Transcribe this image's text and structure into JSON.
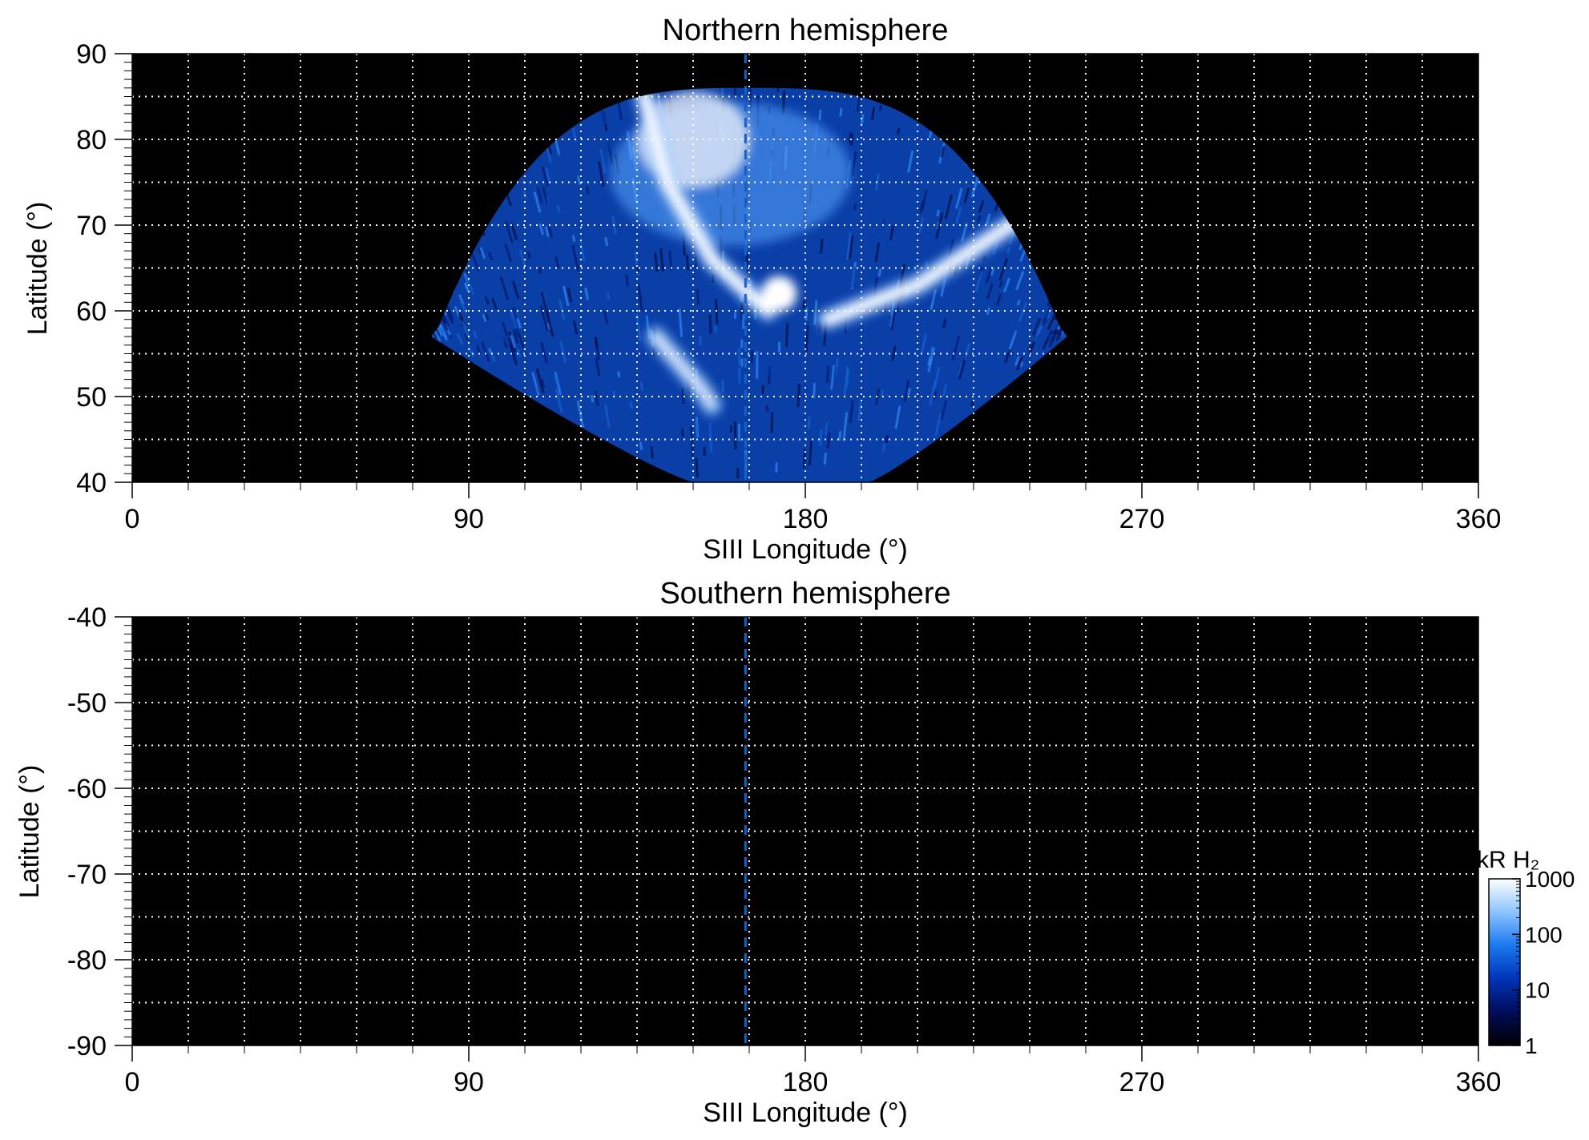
{
  "chart_data": [
    {
      "type": "heatmap",
      "title": "Northern hemisphere",
      "xlabel": "SIII Longitude (°)",
      "ylabel": "Latitude (°)",
      "xlim": [
        0,
        360
      ],
      "ylim": [
        40,
        90
      ],
      "x_ticks": [
        "0",
        "90",
        "180",
        "270",
        "360"
      ],
      "y_ticks": [
        "40",
        "50",
        "60",
        "70",
        "80",
        "90"
      ],
      "grid": true,
      "grid_step_longitude": 15,
      "grid_step_latitude": 5,
      "reference_longitude": 164,
      "reference_line_color": "#1560c8",
      "emission_coverage": {
        "lon_min": 80,
        "lon_max": 250,
        "lat_min": 40,
        "lat_max": 86
      },
      "features": [
        {
          "name": "main oval (left arc)",
          "lon": [
            170,
            155,
            143,
            137
          ],
          "lat": [
            60,
            66,
            75,
            85
          ],
          "level_kR": 1000
        },
        {
          "name": "main oval (right arc)",
          "lon": [
            186,
            210,
            235,
            243
          ],
          "lat": [
            59,
            63,
            70,
            72
          ],
          "level_kR": 1000
        },
        {
          "name": "bright spot",
          "lon": 173,
          "lat": 62,
          "level_kR": 1000
        },
        {
          "name": "footprint arc",
          "lon": [
            140,
            152,
            155
          ],
          "lat": [
            57,
            51,
            49
          ],
          "level_kR": 600
        }
      ]
    },
    {
      "type": "heatmap",
      "title": "Southern hemisphere",
      "xlabel": "SIII Longitude (°)",
      "ylabel": "Latitude (°)",
      "xlim": [
        0,
        360
      ],
      "ylim": [
        -90,
        -40
      ],
      "x_ticks": [
        "0",
        "90",
        "180",
        "270",
        "360"
      ],
      "y_ticks": [
        "-40",
        "-50",
        "-60",
        "-70",
        "-80",
        "-90"
      ],
      "grid": true,
      "grid_step_longitude": 15,
      "grid_step_latitude": 5,
      "reference_longitude": 164,
      "reference_line_color": "#1560c8"
    }
  ],
  "colorbar": {
    "title": "kR H₂",
    "scale": "log",
    "range": [
      1,
      1000
    ],
    "ticks": [
      "1",
      "10",
      "100",
      "1000"
    ],
    "colors": [
      "#000000",
      "#000c5a",
      "#0034b8",
      "#1a78ef",
      "#8cc4ff",
      "#ffffff"
    ]
  }
}
